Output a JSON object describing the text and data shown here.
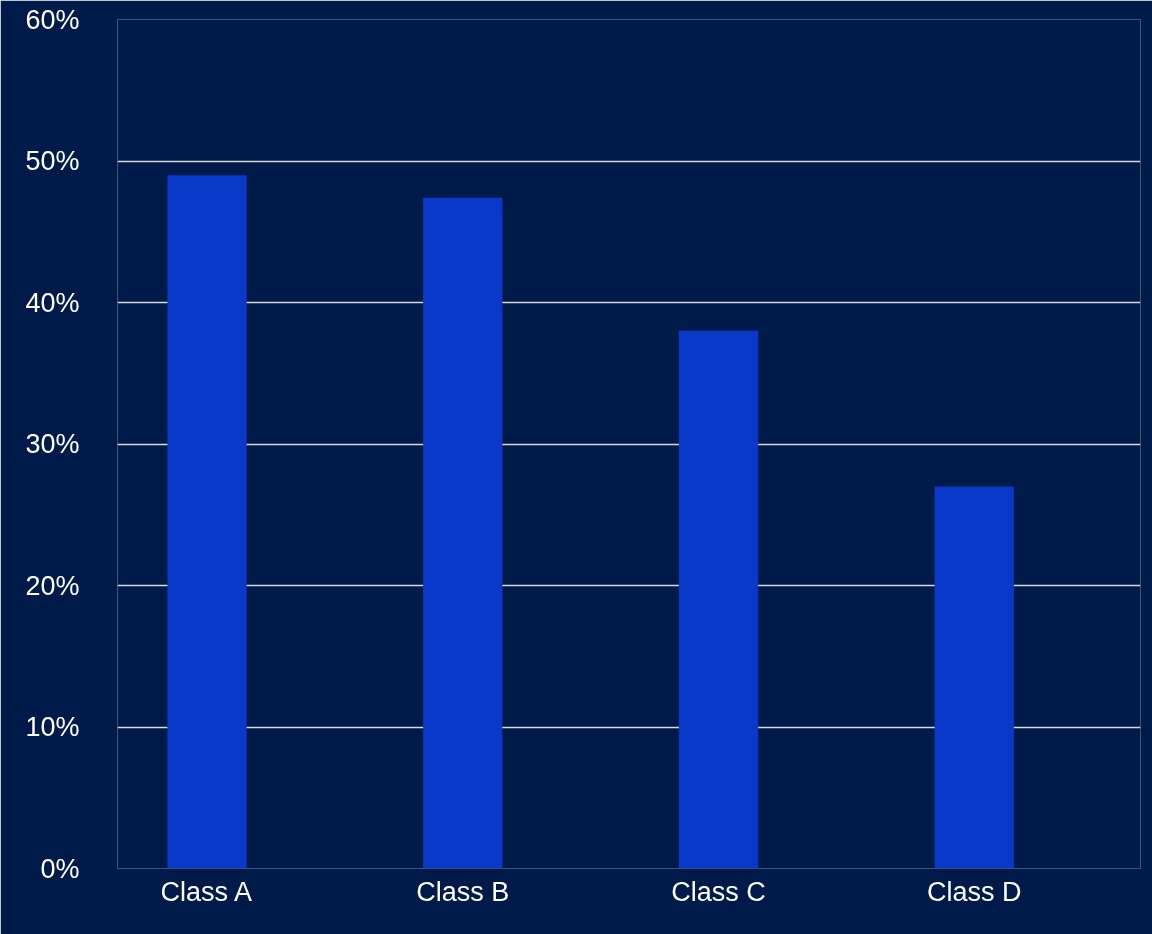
{
  "chart_data": {
    "type": "bar",
    "categories": [
      "Class A",
      "Class B",
      "Class C",
      "Class D"
    ],
    "values": [
      49,
      47.4,
      38,
      27
    ],
    "color": "#0a38c8",
    "ylim": [
      0,
      60
    ],
    "yticks": [
      {
        "value": 0,
        "label": "0%"
      },
      {
        "value": 10,
        "label": "10%"
      },
      {
        "value": 20,
        "label": "20%"
      },
      {
        "value": 30,
        "label": "30%"
      },
      {
        "value": 40,
        "label": "40%"
      },
      {
        "value": 50,
        "label": "50%"
      },
      {
        "value": 60,
        "label": "60%"
      }
    ],
    "grid": "y"
  }
}
